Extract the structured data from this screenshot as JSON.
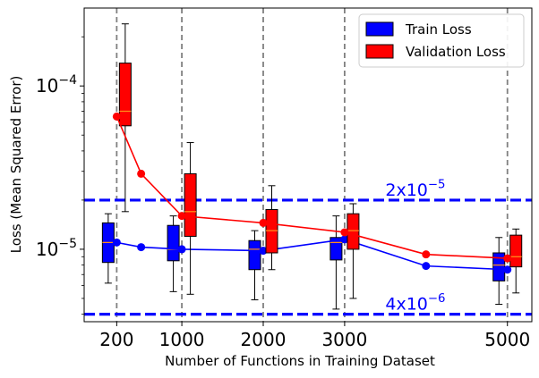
{
  "chart_data": {
    "type": "box",
    "xlabel": "Number of Functions in Training Dataset",
    "ylabel": "Loss (Mean Squared Error)",
    "yscale": "log",
    "xlim": [
      -200,
      5300
    ],
    "ylim": [
      3.6e-06,
      0.0003
    ],
    "x_ticks": [
      {
        "value": 200,
        "label": "200"
      },
      {
        "value": 1000,
        "label": "1000"
      },
      {
        "value": 2000,
        "label": "2000"
      },
      {
        "value": 3000,
        "label": "3000"
      },
      {
        "value": 5000,
        "label": "5000"
      }
    ],
    "y_ticks": [
      {
        "value": 1e-05,
        "base": "10",
        "exp": "−5"
      },
      {
        "value": 0.0001,
        "base": "10",
        "exp": "−4"
      }
    ],
    "vlines": [
      200,
      1000,
      2000,
      3000,
      5000
    ],
    "hlines": [
      {
        "value": 2e-05,
        "base": "2x10",
        "exp": "−5",
        "label_x": 3500
      },
      {
        "value": 4e-06,
        "base": "4x10",
        "exp": "−6",
        "label_x": 3500
      }
    ],
    "legend": {
      "placement": "top-right"
    },
    "series": [
      {
        "name": "Train Loss",
        "color": "#0000ff",
        "boxes": [
          {
            "x": 200,
            "whislo": 6.2e-06,
            "q1": 8.3e-06,
            "med": 1.1e-05,
            "q3": 1.45e-05,
            "whishi": 1.65e-05
          },
          {
            "x": 1000,
            "whislo": 5.5e-06,
            "q1": 8.5e-06,
            "med": 1e-05,
            "q3": 1.4e-05,
            "whishi": 1.6e-05
          },
          {
            "x": 2000,
            "whislo": 4.9e-06,
            "q1": 7.5e-06,
            "med": 1e-05,
            "q3": 1.13e-05,
            "whishi": 1.3e-05
          },
          {
            "x": 3000,
            "whislo": 4.3e-06,
            "q1": 8.6e-06,
            "med": 1.1e-05,
            "q3": 1.18e-05,
            "whishi": 1.6e-05
          },
          {
            "x": 5000,
            "whislo": 4.6e-06,
            "q1": 6.4e-06,
            "med": 8e-06,
            "q3": 9.5e-06,
            "whishi": 1.18e-05
          }
        ],
        "line_x": [
          200,
          500,
          1000,
          2000,
          3000,
          4000,
          5000
        ],
        "line_y": [
          1.1e-05,
          1.03e-05,
          1e-05,
          9.8e-06,
          1.15e-05,
          7.9e-06,
          7.5e-06
        ]
      },
      {
        "name": "Validation Loss",
        "color": "#ff0000",
        "boxes": [
          {
            "x": 200,
            "whislo": 1.7e-05,
            "q1": 5.7e-05,
            "med": 7e-05,
            "q3": 0.000138,
            "whishi": 0.00024
          },
          {
            "x": 1000,
            "whislo": 5.3e-06,
            "q1": 1.2e-05,
            "med": 1.7e-05,
            "q3": 2.9e-05,
            "whishi": 4.5e-05
          },
          {
            "x": 2000,
            "whislo": 7.5e-06,
            "q1": 9.5e-06,
            "med": 1.3e-05,
            "q3": 1.75e-05,
            "whishi": 2.45e-05
          },
          {
            "x": 3000,
            "whislo": 5e-06,
            "q1": 1e-05,
            "med": 1.3e-05,
            "q3": 1.65e-05,
            "whishi": 1.9e-05
          },
          {
            "x": 5000,
            "whislo": 5.4e-06,
            "q1": 7.8e-06,
            "med": 9e-06,
            "q3": 1.22e-05,
            "whishi": 1.33e-05
          }
        ],
        "line_x": [
          200,
          500,
          1000,
          2000,
          3000,
          4000,
          5000
        ],
        "line_y": [
          6.5e-05,
          2.9e-05,
          1.6e-05,
          1.45e-05,
          1.27e-05,
          9.3e-06,
          8.8e-06
        ]
      }
    ]
  }
}
